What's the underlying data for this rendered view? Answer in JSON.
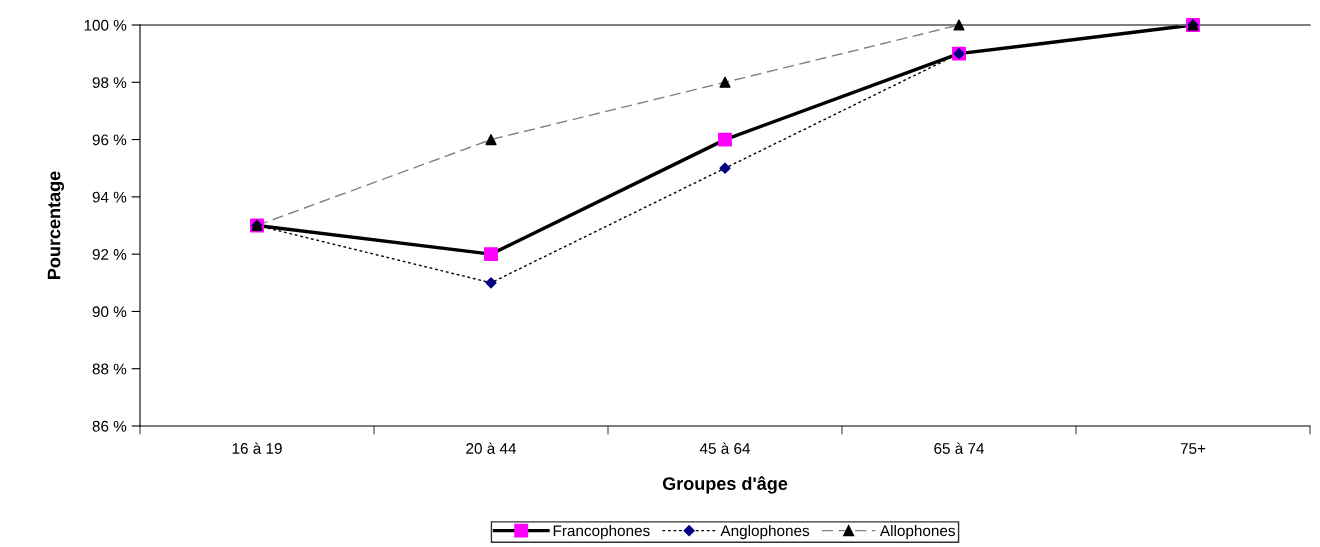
{
  "chart_data": {
    "type": "line",
    "xlabel": "Groupes d'âge",
    "ylabel": "Pourcentage",
    "categories": [
      "16 à 19",
      "20 à 44",
      "45 à 64",
      "65 à 74",
      "75+"
    ],
    "series": [
      {
        "name": "Francophones",
        "color": "#000000",
        "colors": [
          "#ff00ff",
          "#ff00ff",
          "#ff00ff",
          "#ff00ff",
          "#ff00ff"
        ],
        "marker": "square",
        "line_style": "solid",
        "values": [
          93,
          92,
          96,
          99,
          100
        ]
      },
      {
        "name": "Anglophones",
        "color": "#000000",
        "colors": [
          "#000080",
          "#000080",
          "#000080",
          "#000080",
          "#000080"
        ],
        "marker": "diamond",
        "line_style": "dotted",
        "values": [
          93,
          91,
          95,
          99,
          100
        ]
      },
      {
        "name": "Allophones",
        "color": "#808080",
        "colors": [
          "#000000",
          "#000000",
          "#000000",
          "#000000",
          "#000000"
        ],
        "marker": "triangle",
        "line_style": "dashed",
        "values": [
          93,
          96,
          98,
          100,
          100
        ]
      }
    ],
    "ylim": [
      86,
      100
    ],
    "yticks": [
      {
        "value": 86,
        "label": "86 %"
      },
      {
        "value": 88,
        "label": "88 %"
      },
      {
        "value": 90,
        "label": "90 %"
      },
      {
        "value": 92,
        "label": "92 %"
      },
      {
        "value": 94,
        "label": "94 %"
      },
      {
        "value": 96,
        "label": "96 %"
      },
      {
        "value": 98,
        "label": "98 %"
      },
      {
        "value": 100,
        "label": "100 %"
      }
    ],
    "grid": false,
    "legend": "bottom"
  }
}
